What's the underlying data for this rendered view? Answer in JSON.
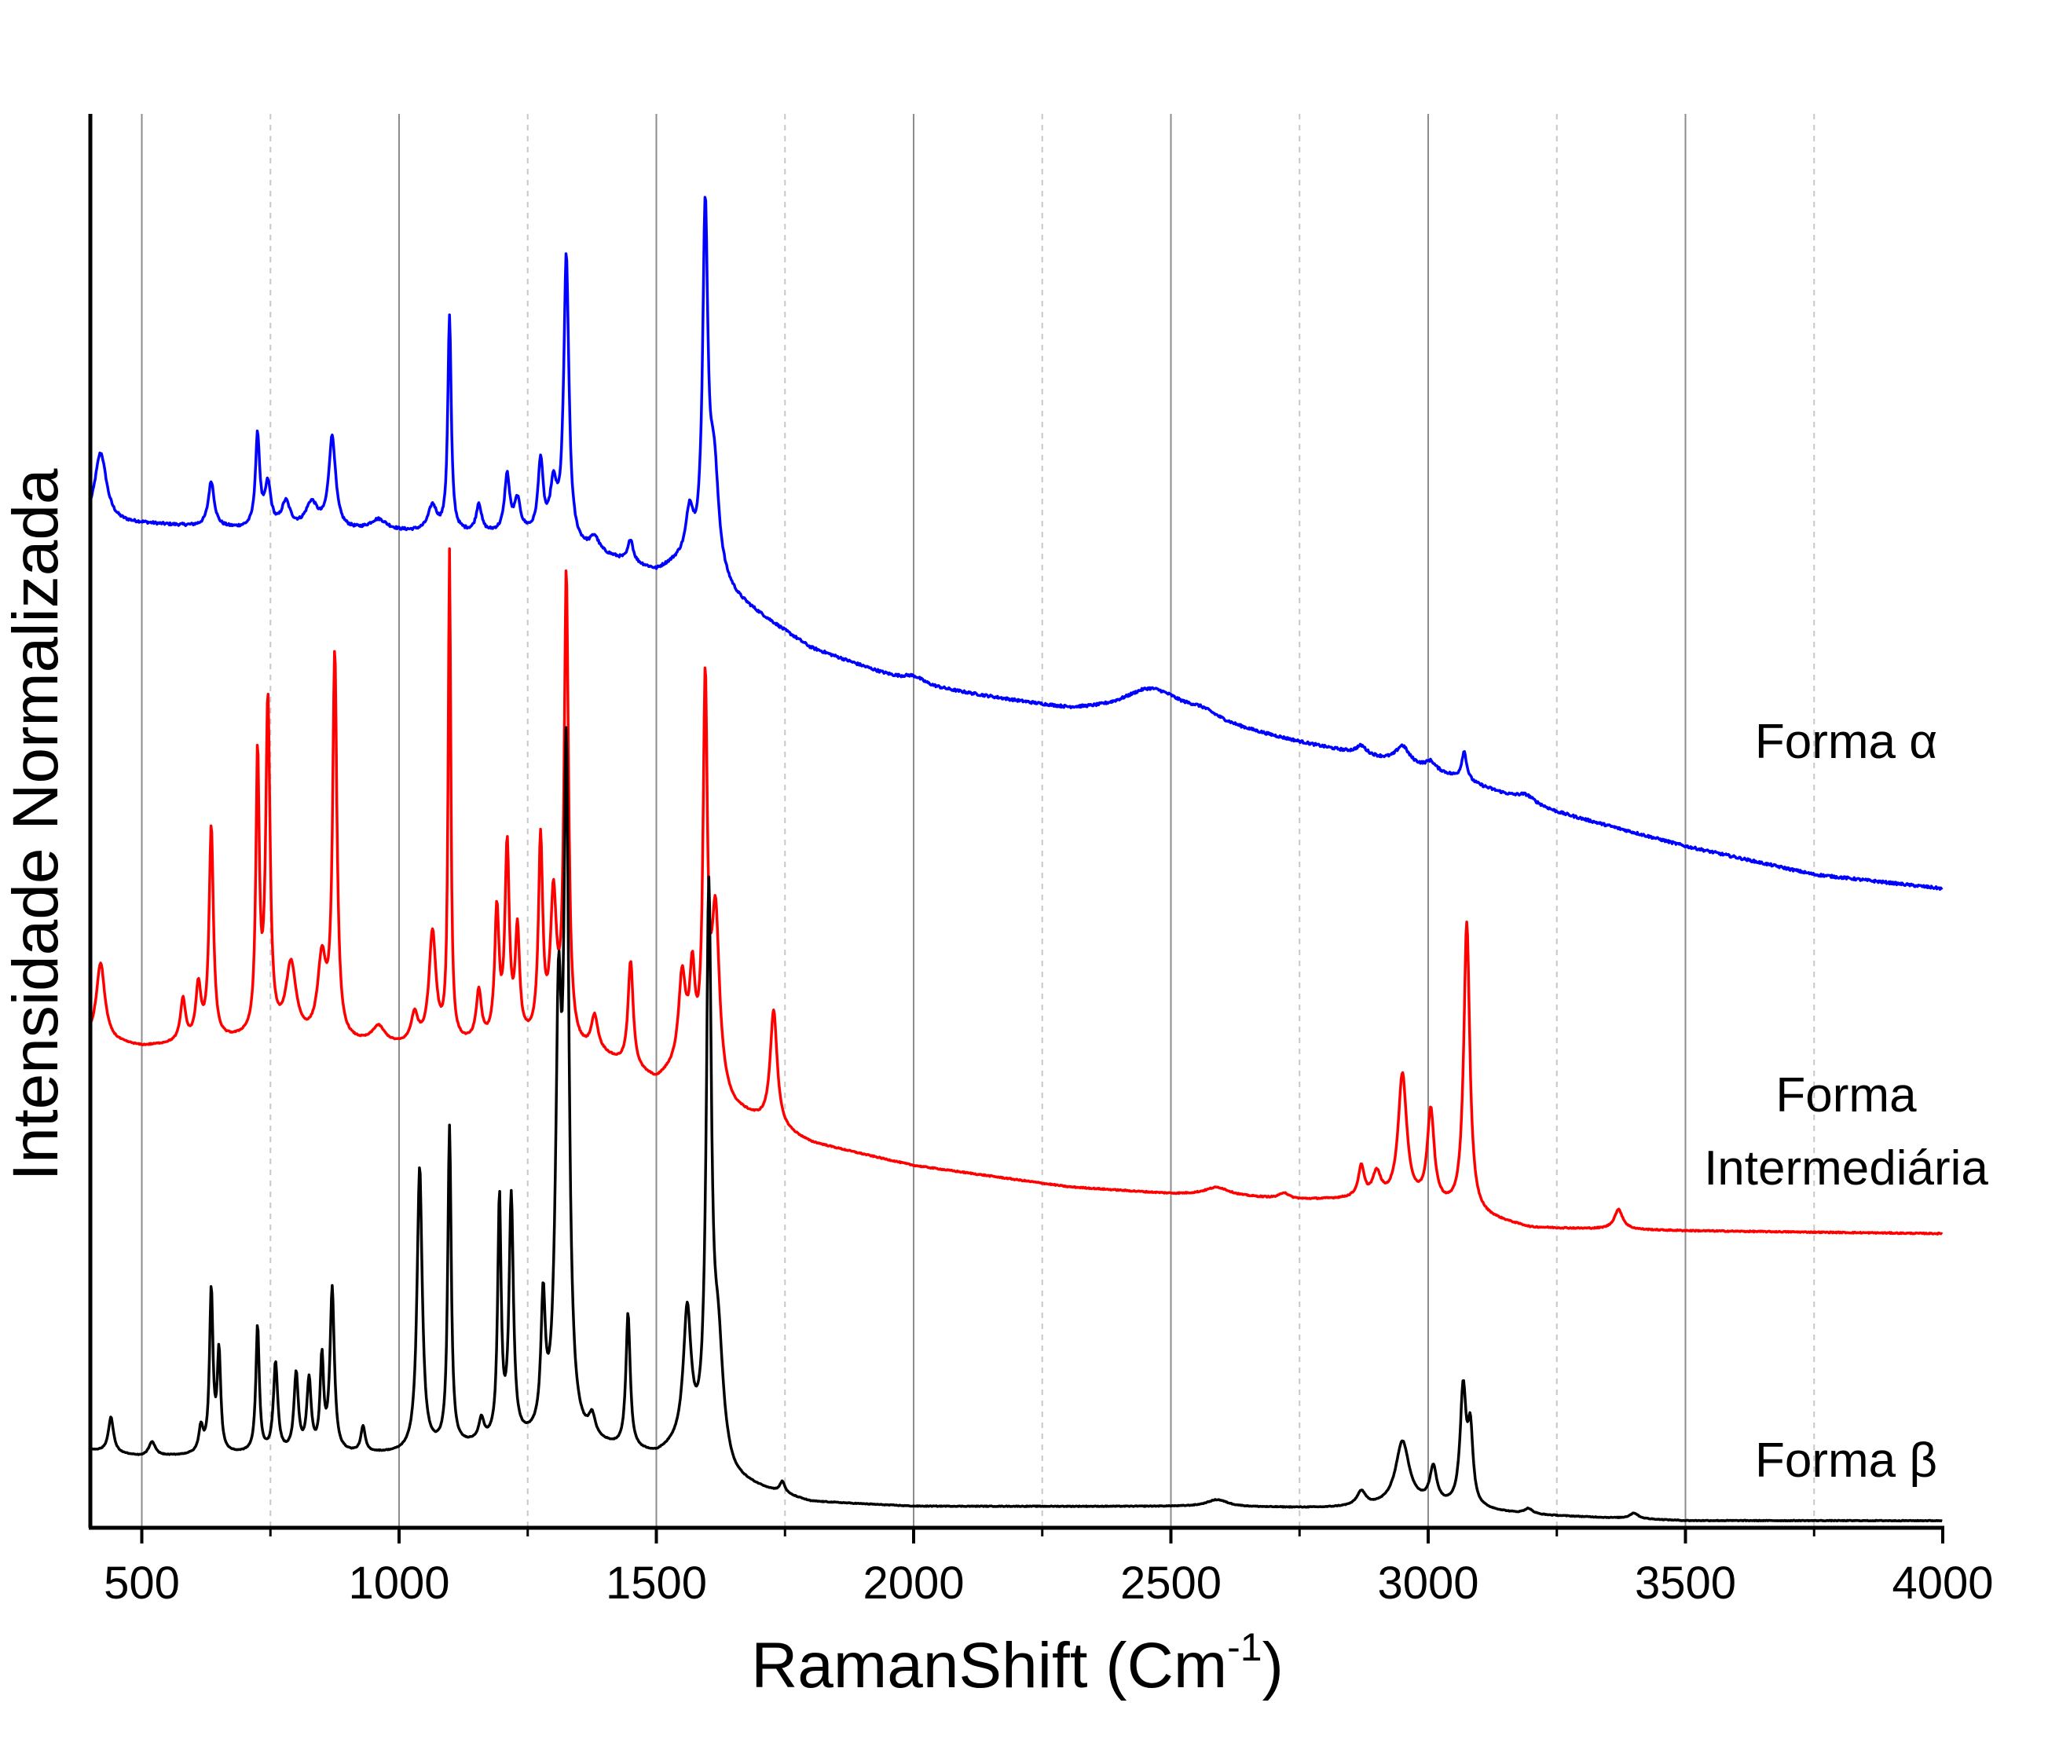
{
  "chart_data": {
    "type": "line",
    "title": "",
    "xlabel": "RamanShift (Cm",
    "xlabel_sup": "-1",
    "xlabel_close": ")",
    "ylabel": "Intensidade Normalizada",
    "xlim": [
      400,
      4000
    ],
    "ylim": [
      0,
      100
    ],
    "x_ticks": [
      500,
      1000,
      1500,
      2000,
      2500,
      3000,
      3500,
      4000
    ],
    "x_minor_ticks": [
      750,
      1250,
      1750,
      2250,
      2750,
      3250,
      3750
    ],
    "y_ticks_shown": false,
    "grid": {
      "major_vertical": true,
      "minor_vertical_dashed": true,
      "horizontal": false
    },
    "legend": "none",
    "series": [
      {
        "name": "Forma α",
        "label_lines": [
          "Forma α"
        ],
        "color": "#0000ff",
        "baseline": [
          [
            400,
            71.0
          ],
          [
            500,
            71.0
          ],
          [
            700,
            70.6
          ],
          [
            1000,
            70.4
          ],
          [
            1250,
            70.2
          ],
          [
            1420,
            68.5
          ],
          [
            1500,
            67.6
          ],
          [
            1560,
            68.5
          ],
          [
            1660,
            65.5
          ],
          [
            1800,
            62.2
          ],
          [
            2000,
            59.6
          ],
          [
            2300,
            57.8
          ],
          [
            2500,
            57.4
          ],
          [
            2750,
            55.5
          ],
          [
            3000,
            53.7
          ],
          [
            3250,
            50.6
          ],
          [
            3500,
            48.2
          ],
          [
            3750,
            46.2
          ],
          [
            4000,
            45.2
          ]
        ],
        "peaks": [
          [
            420,
            5.0,
            14
          ],
          [
            635,
            3.2,
            7
          ],
          [
            725,
            6.5,
            5
          ],
          [
            745,
            3.0,
            7
          ],
          [
            780,
            1.8,
            10
          ],
          [
            830,
            1.8,
            14
          ],
          [
            870,
            6.5,
            8
          ],
          [
            960,
            0.8,
            20
          ],
          [
            1065,
            1.8,
            10
          ],
          [
            1098,
            15.2,
            4
          ],
          [
            1155,
            2.0,
            6
          ],
          [
            1210,
            4.0,
            6
          ],
          [
            1230,
            2.2,
            7
          ],
          [
            1275,
            5.2,
            6
          ],
          [
            1300,
            3.5,
            8
          ],
          [
            1325,
            20.2,
            6
          ],
          [
            1380,
            1.0,
            10
          ],
          [
            1450,
            1.6,
            6
          ],
          [
            1565,
            3.0,
            8
          ],
          [
            1595,
            24.5,
            6
          ],
          [
            1612,
            7.5,
            11
          ],
          [
            2000,
            0.6,
            25
          ],
          [
            2460,
            1.8,
            65
          ],
          [
            2560,
            0.6,
            40
          ],
          [
            2870,
            0.6,
            12
          ],
          [
            2950,
            1.2,
            15
          ],
          [
            3005,
            0.5,
            10
          ],
          [
            3070,
            2.0,
            6
          ],
          [
            3190,
            0.5,
            20
          ]
        ]
      },
      {
        "name": "Forma Intermediária",
        "label_lines": [
          "Forma",
          "Intermediária"
        ],
        "color": "#ff0000",
        "baseline": [
          [
            400,
            34.5
          ],
          [
            500,
            34.0
          ],
          [
            700,
            34.5
          ],
          [
            1000,
            34.0
          ],
          [
            1250,
            34.2
          ],
          [
            1400,
            33.2
          ],
          [
            1500,
            31.5
          ],
          [
            1560,
            32.8
          ],
          [
            1650,
            29.5
          ],
          [
            1800,
            27.2
          ],
          [
            2000,
            25.6
          ],
          [
            2300,
            24.1
          ],
          [
            2500,
            23.6
          ],
          [
            2750,
            23.2
          ],
          [
            2850,
            23.2
          ],
          [
            3000,
            22.8
          ],
          [
            3200,
            21.2
          ],
          [
            3500,
            21.0
          ],
          [
            4000,
            20.8
          ]
        ],
        "peaks": [
          [
            420,
            5.5,
            10
          ],
          [
            580,
            3.0,
            6
          ],
          [
            610,
            3.8,
            6
          ],
          [
            635,
            15.0,
            5
          ],
          [
            725,
            19.5,
            4
          ],
          [
            745,
            23.5,
            5
          ],
          [
            790,
            5.2,
            12
          ],
          [
            850,
            5.5,
            10
          ],
          [
            875,
            27.0,
            5
          ],
          [
            960,
            1.2,
            15
          ],
          [
            1030,
            2.0,
            8
          ],
          [
            1065,
            7.8,
            8
          ],
          [
            1098,
            34.5,
            3
          ],
          [
            1155,
            3.5,
            6
          ],
          [
            1190,
            9.0,
            5
          ],
          [
            1210,
            13.5,
            5
          ],
          [
            1230,
            7.5,
            5
          ],
          [
            1275,
            14.0,
            5
          ],
          [
            1300,
            10.0,
            7
          ],
          [
            1325,
            33.2,
            5
          ],
          [
            1380,
            2.5,
            8
          ],
          [
            1450,
            7.5,
            6
          ],
          [
            1550,
            6.0,
            8
          ],
          [
            1570,
            6.0,
            6
          ],
          [
            1595,
            27.0,
            5
          ],
          [
            1615,
            12.0,
            9
          ],
          [
            1728,
            8.2,
            8
          ],
          [
            2590,
            0.6,
            30
          ],
          [
            2720,
            0.4,
            10
          ],
          [
            2870,
            2.2,
            7
          ],
          [
            2900,
            1.8,
            10
          ],
          [
            2950,
            9.0,
            10
          ],
          [
            3005,
            6.5,
            8
          ],
          [
            3075,
            20.5,
            7
          ],
          [
            3370,
            1.4,
            10
          ]
        ]
      },
      {
        "name": "Forma β",
        "label_lines": [
          "Forma β"
        ],
        "color": "#000000",
        "baseline": [
          [
            400,
            5.5
          ],
          [
            500,
            5.0
          ],
          [
            700,
            5.2
          ],
          [
            1000,
            5.2
          ],
          [
            1150,
            5.8
          ],
          [
            1280,
            6.0
          ],
          [
            1400,
            5.6
          ],
          [
            1500,
            5.0
          ],
          [
            1560,
            5.8
          ],
          [
            1650,
            3.2
          ],
          [
            1800,
            1.8
          ],
          [
            2000,
            1.5
          ],
          [
            2500,
            1.5
          ],
          [
            2800,
            1.4
          ],
          [
            3000,
            1.6
          ],
          [
            3200,
            0.9
          ],
          [
            3500,
            0.5
          ],
          [
            4000,
            0.5
          ]
        ],
        "peaks": [
          [
            440,
            2.5,
            6
          ],
          [
            520,
            1.0,
            8
          ],
          [
            615,
            1.8,
            5
          ],
          [
            635,
            11.5,
            4
          ],
          [
            650,
            7.0,
            4
          ],
          [
            725,
            9.0,
            4
          ],
          [
            760,
            6.3,
            5
          ],
          [
            800,
            5.5,
            5
          ],
          [
            825,
            5.0,
            5
          ],
          [
            850,
            6.5,
            4
          ],
          [
            870,
            11.5,
            5
          ],
          [
            930,
            1.8,
            5
          ],
          [
            1040,
            20.0,
            6
          ],
          [
            1098,
            22.5,
            4
          ],
          [
            1160,
            1.5,
            6
          ],
          [
            1195,
            17.0,
            4
          ],
          [
            1218,
            17.0,
            5
          ],
          [
            1280,
            9.0,
            5
          ],
          [
            1310,
            28.0,
            7
          ],
          [
            1325,
            45.5,
            6
          ],
          [
            1375,
            1.5,
            8
          ],
          [
            1445,
            9.5,
            5
          ],
          [
            1560,
            9.0,
            9
          ],
          [
            1602,
            38.5,
            6
          ],
          [
            1620,
            8.0,
            12
          ],
          [
            1745,
            0.8,
            6
          ],
          [
            2590,
            0.5,
            25
          ],
          [
            2870,
            1.0,
            10
          ],
          [
            2950,
            4.5,
            16
          ],
          [
            3010,
            2.5,
            8
          ],
          [
            3068,
            8.2,
            7
          ],
          [
            3082,
            5.0,
            6
          ],
          [
            3195,
            0.4,
            10
          ],
          [
            3400,
            0.4,
            10
          ]
        ]
      }
    ]
  }
}
